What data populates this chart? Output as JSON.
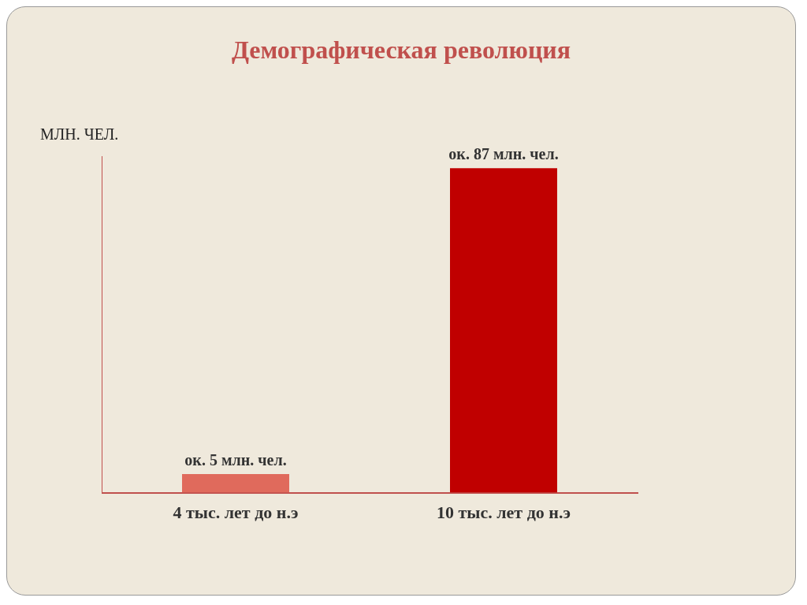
{
  "chart_data": {
    "type": "bar",
    "title": "Демографическая революция",
    "ylabel": "МЛН. ЧЕЛ.",
    "categories": [
      "4 тыс. лет до н.э",
      "10 тыс. лет до н.э"
    ],
    "values": [
      5,
      87
    ],
    "colors": [
      "#e06a5c",
      "#c00000"
    ],
    "value_labels": [
      "ок. 5 млн. чел.",
      "ок. 87 млн. чел."
    ],
    "tick_labels": "x",
    "grid": false,
    "legend": false
  }
}
